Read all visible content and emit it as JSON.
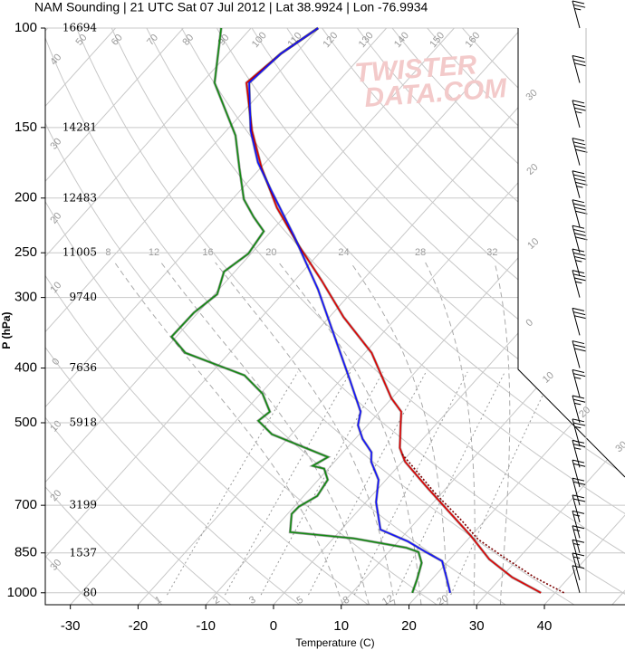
{
  "chart_data": {
    "type": "skewt",
    "title": "NAM Sounding | 21 UTC Sat 07 Jul 2012 | Lat 38.9924 | Lon -76.9934",
    "xlabel": "Temperature (C)",
    "ylabel": "P (hPa)",
    "watermark": [
      "TWISTER",
      "DATA.COM"
    ],
    "log_y": true,
    "xlim": [
      -33.7,
      51.9
    ],
    "ylim": [
      1050,
      100
    ],
    "xticks": [
      -30,
      -20,
      -10,
      0,
      10,
      20,
      30,
      40
    ],
    "yticks": [
      100,
      150,
      200,
      250,
      300,
      400,
      500,
      700,
      850,
      1000
    ],
    "height_labels": [
      16694,
      14281,
      12483,
      11005,
      9740,
      7636,
      5918,
      3199,
      1537,
      80
    ],
    "grid": true,
    "isotherms": [
      -110,
      -100,
      -90,
      -80,
      -70,
      -60,
      -50,
      -40,
      -30,
      -20,
      -10,
      0,
      10,
      20,
      30,
      40,
      50
    ],
    "isotherm_labels": [
      {
        "value": -30,
        "label": "30"
      },
      {
        "value": -20,
        "label": "20"
      },
      {
        "value": -10,
        "label": "10"
      },
      0,
      10,
      20,
      30
    ],
    "dry_adiabats": [
      {
        "value": -30,
        "label": "30"
      },
      {
        "value": -20,
        "label": "20"
      },
      {
        "value": -10,
        "label": "10"
      },
      0,
      10,
      20,
      30,
      40,
      50,
      60,
      70,
      80,
      90,
      100,
      110,
      120,
      130,
      140,
      150,
      160
    ],
    "moist_adiabats": [
      8,
      12,
      16,
      20,
      24,
      28,
      32
    ],
    "mixing_ratios": [
      1,
      2,
      3,
      5,
      8,
      12,
      20
    ],
    "series": [
      {
        "color": "#e00000",
        "pressure": [
          1000,
          939,
          872,
          793,
          717,
          647,
          586,
          554,
          505,
          478,
          452,
          376,
          325,
          280,
          242,
          208,
          177,
          152,
          125,
          111,
          100
        ],
        "values": [
          37.9,
          31.6,
          25.8,
          20.0,
          13.4,
          6.7,
          0.4,
          -2.2,
          -5.1,
          -6.8,
          -10.1,
          -19.0,
          -27.9,
          -36.0,
          -44.2,
          -52.3,
          -59.8,
          -66.2,
          -73.4,
          -72.2,
          -70.1
        ]
      },
      {
        "color": "#138a13",
        "pressure": [
          1000,
          946,
          885,
          847,
          832,
          801,
          781,
          725,
          704,
          674,
          631,
          603,
          596,
          575,
          524,
          496,
          478,
          444,
          412,
          376,
          352,
          319,
          296,
          270,
          251,
          229,
          216,
          201,
          177,
          155,
          125,
          100
        ],
        "values": [
          18.9,
          17.8,
          16.3,
          14.4,
          12.0,
          3.0,
          -7.2,
          -9.4,
          -9.3,
          -8.0,
          -8.6,
          -10.6,
          -12.7,
          -11.6,
          -22.9,
          -26.7,
          -26.2,
          -29.7,
          -34.8,
          -46.5,
          -50.7,
          -50.6,
          -49.6,
          -51.6,
          -50.4,
          -51.1,
          -54.5,
          -58.3,
          -63.1,
          -68.0,
          -78.1,
          -84.4
        ]
      },
      {
        "color": "#1010ff",
        "pressure": [
          1000,
          946,
          879,
          847,
          811,
          773,
          691,
          631,
          586,
          564,
          534,
          505,
          478,
          420,
          356,
          290,
          233,
          194,
          173,
          152,
          125,
          111,
          100
        ],
        "values": [
          24.5,
          22.2,
          19.1,
          15.5,
          11.4,
          5.8,
          1.5,
          -1.1,
          -4.6,
          -5.8,
          -8.9,
          -11.4,
          -12.8,
          -18.6,
          -26.1,
          -35.4,
          -46.1,
          -55.4,
          -61.1,
          -66.4,
          -73.0,
          -72.2,
          -70.1
        ]
      },
      {
        "color": "#7a0000",
        "style": "dotted",
        "pressure": [
          1000,
          939,
          863,
          804,
          745,
          666,
          596,
          565
        ],
        "values": [
          41.3,
          34.9,
          27.5,
          21.5,
          16.6,
          9.0,
          2.0,
          -1.4
        ]
      }
    ],
    "wind": {
      "pressure": [
        1000,
        950,
        900,
        850,
        800,
        750,
        700,
        650,
        600,
        550,
        500,
        450,
        400,
        350,
        300,
        275,
        250,
        225,
        200,
        175,
        150,
        125,
        100
      ],
      "speed": [
        10,
        15,
        15,
        15,
        15,
        20,
        20,
        20,
        25,
        25,
        25,
        25,
        30,
        30,
        35,
        35,
        40,
        40,
        45,
        40,
        35,
        30,
        25
      ]
    }
  }
}
